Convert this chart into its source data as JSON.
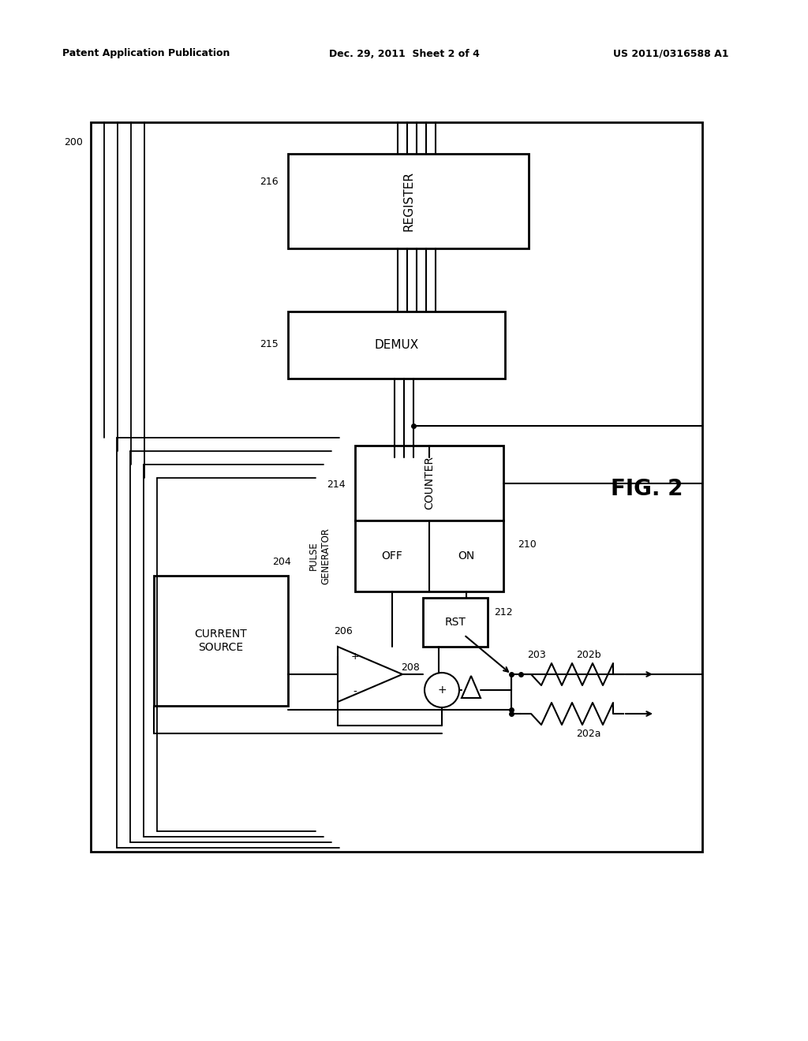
{
  "bg_color": "#ffffff",
  "header_left": "Patent Application Publication",
  "header_center": "Dec. 29, 2011  Sheet 2 of 4",
  "header_right": "US 2011/0316588 A1",
  "fig_label": "FIG. 2",
  "outer_box_label": "200",
  "cs_box_label": "204",
  "register_label": "REGISTER",
  "register_num": "216",
  "demux_label": "DEMUX",
  "demux_num": "215",
  "counter_label": "COUNTER",
  "counter_num": "214",
  "pulse_gen_label": "PULSE\nGENERATOR",
  "current_source_label": "CURRENT\nSOURCE",
  "off_label": "OFF",
  "on_label": "ON",
  "pulse_box_num": "210",
  "rst_label": "RST",
  "rst_num": "212",
  "comparator_num": "206",
  "summer_num": "208",
  "node_203": "203",
  "res_202b": "202b",
  "res_202a": "202a"
}
